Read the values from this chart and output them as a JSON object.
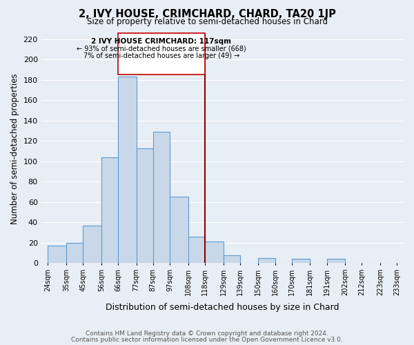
{
  "title": "2, IVY HOUSE, CRIMCHARD, CHARD, TA20 1JP",
  "subtitle": "Size of property relative to semi-detached houses in Chard",
  "xlabel": "Distribution of semi-detached houses by size in Chard",
  "ylabel": "Number of semi-detached properties",
  "footer_line1": "Contains HM Land Registry data © Crown copyright and database right 2024.",
  "footer_line2": "Contains public sector information licensed under the Open Government Licence v3.0.",
  "annotation_line1": "2 IVY HOUSE CRIMCHARD: 117sqm",
  "annotation_line2": "← 93% of semi-detached houses are smaller (668)",
  "annotation_line3": "7% of semi-detached houses are larger (49) →",
  "bar_left_edges": [
    24,
    35,
    45,
    56,
    66,
    77,
    87,
    97,
    108,
    118,
    129,
    139,
    150,
    160,
    170,
    181,
    191,
    202,
    212,
    223
  ],
  "bar_widths": [
    11,
    10,
    11,
    10,
    11,
    10,
    10,
    11,
    10,
    11,
    10,
    11,
    10,
    10,
    11,
    10,
    11,
    10,
    11,
    10
  ],
  "bar_heights": [
    17,
    20,
    37,
    104,
    183,
    113,
    129,
    65,
    26,
    21,
    8,
    0,
    5,
    0,
    4,
    0,
    4,
    0,
    0,
    0
  ],
  "tick_labels": [
    "24sqm",
    "35sqm",
    "45sqm",
    "56sqm",
    "66sqm",
    "77sqm",
    "87sqm",
    "97sqm",
    "108sqm",
    "118sqm",
    "129sqm",
    "139sqm",
    "150sqm",
    "160sqm",
    "170sqm",
    "181sqm",
    "191sqm",
    "202sqm",
    "212sqm",
    "223sqm",
    "233sqm"
  ],
  "tick_positions": [
    24,
    35,
    45,
    56,
    66,
    77,
    87,
    97,
    108,
    118,
    129,
    139,
    150,
    160,
    170,
    181,
    191,
    202,
    212,
    223,
    233
  ],
  "bar_color": "#c8d8e8",
  "bar_edge_color": "#5b9bd5",
  "vline_color": "#8b0000",
  "vline_x": 118,
  "ylim": [
    0,
    225
  ],
  "yticks": [
    0,
    20,
    40,
    60,
    80,
    100,
    120,
    140,
    160,
    180,
    200,
    220
  ],
  "bg_color": "#e8eef5",
  "grid_color": "#ffffff",
  "annotation_box_color": "#ffffff",
  "annotation_box_edge": "#c00000",
  "xlim_left": 20,
  "xlim_right": 237
}
